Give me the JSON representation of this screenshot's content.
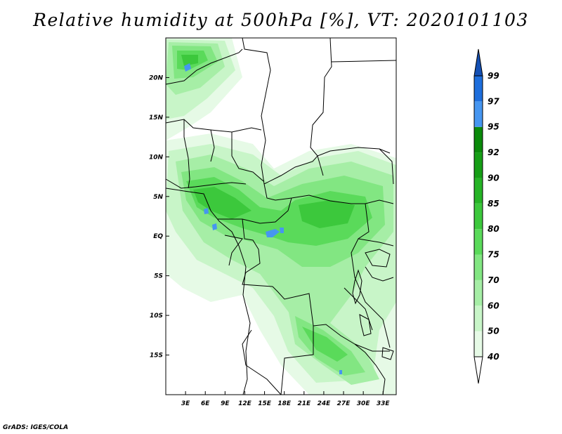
{
  "title": "Relative humidity at 500hPa [%], VT: 2020101103",
  "credit": "GrADS: IGES/COLA",
  "map": {
    "lon_range": [
      0,
      35
    ],
    "lat_range": [
      -20,
      25
    ],
    "lat_ticks": [
      {
        "value": 20,
        "label": "20N"
      },
      {
        "value": 15,
        "label": "15N"
      },
      {
        "value": 10,
        "label": "10N"
      },
      {
        "value": 5,
        "label": "5N"
      },
      {
        "value": 0,
        "label": "EQ"
      },
      {
        "value": -5,
        "label": "5S"
      },
      {
        "value": -10,
        "label": "10S"
      },
      {
        "value": -15,
        "label": "15S"
      }
    ],
    "lon_ticks": [
      {
        "value": 3,
        "label": "3E"
      },
      {
        "value": 6,
        "label": "6E"
      },
      {
        "value": 9,
        "label": "9E"
      },
      {
        "value": 12,
        "label": "12E"
      },
      {
        "value": 15,
        "label": "15E"
      },
      {
        "value": 18,
        "label": "18E"
      },
      {
        "value": 21,
        "label": "21E"
      },
      {
        "value": 24,
        "label": "24E"
      },
      {
        "value": 27,
        "label": "27E"
      },
      {
        "value": 30,
        "label": "30E"
      },
      {
        "value": 33,
        "label": "33E"
      }
    ]
  },
  "colorbar": {
    "levels": [
      {
        "label": "40",
        "color": "#ffffff"
      },
      {
        "label": "50",
        "color": "#e6fae6"
      },
      {
        "label": "60",
        "color": "#c8f5c8"
      },
      {
        "label": "70",
        "color": "#a6eea6"
      },
      {
        "label": "75",
        "color": "#82e682"
      },
      {
        "label": "80",
        "color": "#5ada5a"
      },
      {
        "label": "85",
        "color": "#3cc83c"
      },
      {
        "label": "90",
        "color": "#26b426"
      },
      {
        "label": "92",
        "color": "#169e16"
      },
      {
        "label": "95",
        "color": "#0a8a0a"
      },
      {
        "label": "97",
        "color": "#4696f0"
      },
      {
        "label": "99",
        "color": "#1e6edc"
      }
    ],
    "top_color": "#1450b4"
  }
}
